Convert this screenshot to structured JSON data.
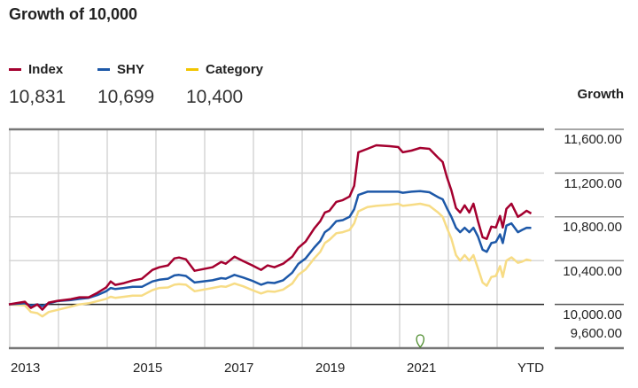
{
  "title": "Growth of 10,000",
  "legend": [
    {
      "name": "Index",
      "value": "10,831",
      "color": "#a4002f"
    },
    {
      "name": "SHY",
      "value": "10,699",
      "color": "#1d58a8"
    },
    {
      "name": "Category",
      "value": "10,400",
      "color": "#f7dc85"
    }
  ],
  "chart_data": {
    "type": "line",
    "title": "Growth of 10,000",
    "ylabel": "Growth",
    "ylim": [
      9600,
      11600
    ],
    "yticks": [
      "11,600.00",
      "11,200.00",
      "10,800.00",
      "10,400.00",
      "10,000.00",
      "9,600.00"
    ],
    "xticks": [
      "2013",
      "2015",
      "2017",
      "2019",
      "2021",
      "YTD"
    ],
    "xlim": [
      2013.0,
      2024.4
    ],
    "grid": true,
    "baseline": 10000,
    "marker": {
      "x": 2021.97,
      "icon": "pin-icon",
      "color": "#4a8a2a"
    },
    "x": [
      2013.0,
      2013.35,
      2013.48,
      2013.62,
      2013.73,
      2013.87,
      2014.06,
      2014.35,
      2014.54,
      2014.74,
      2014.93,
      2015.12,
      2015.22,
      2015.32,
      2015.51,
      2015.7,
      2015.9,
      2016.13,
      2016.28,
      2016.47,
      2016.61,
      2016.71,
      2016.86,
      2017.05,
      2017.44,
      2017.63,
      2017.73,
      2017.92,
      2018.11,
      2018.31,
      2018.5,
      2018.64,
      2018.79,
      2018.98,
      2019.18,
      2019.31,
      2019.47,
      2019.66,
      2019.79,
      2019.89,
      2019.99,
      2020.14,
      2020.28,
      2020.43,
      2020.53,
      2020.62,
      2020.82,
      2021.01,
      2021.3,
      2021.49,
      2021.59,
      2021.78,
      2021.97,
      2022.17,
      2022.36,
      2022.46,
      2022.55,
      2022.65,
      2022.75,
      2022.84,
      2022.94,
      2023.04,
      2023.13,
      2023.23,
      2023.33,
      2023.42,
      2023.52,
      2023.62,
      2023.71,
      2023.77,
      2023.85,
      2023.96,
      2024.1,
      2024.19,
      2024.29,
      2024.39
    ],
    "series": [
      {
        "name": "Index",
        "values": [
          10000,
          10024,
          9968,
          10000,
          9952,
          10016,
          10032,
          10048,
          10065,
          10065,
          10105,
          10154,
          10210,
          10178,
          10194,
          10218,
          10234,
          10315,
          10339,
          10356,
          10420,
          10428,
          10412,
          10307,
          10339,
          10388,
          10372,
          10436,
          10396,
          10356,
          10315,
          10356,
          10339,
          10372,
          10436,
          10517,
          10574,
          10695,
          10760,
          10840,
          10856,
          10937,
          10953,
          10986,
          11083,
          11390,
          11422,
          11454,
          11446,
          11438,
          11390,
          11406,
          11430,
          11422,
          11341,
          11301,
          11164,
          11042,
          10881,
          10840,
          10905,
          10840,
          10921,
          10760,
          10614,
          10598,
          10711,
          10703,
          10808,
          10703,
          10873,
          10921,
          10800,
          10824,
          10856,
          10831
        ]
      },
      {
        "name": "SHY",
        "values": [
          10000,
          10010,
          9990,
          10000,
          9985,
          10010,
          10030,
          10040,
          10050,
          10060,
          10085,
          10120,
          10150,
          10140,
          10150,
          10160,
          10160,
          10210,
          10225,
          10235,
          10265,
          10270,
          10260,
          10200,
          10220,
          10240,
          10235,
          10270,
          10245,
          10215,
          10180,
          10200,
          10195,
          10220,
          10290,
          10370,
          10420,
          10520,
          10580,
          10660,
          10690,
          10760,
          10770,
          10800,
          10870,
          11000,
          11030,
          11030,
          11030,
          11030,
          11020,
          11030,
          11035,
          11025,
          10980,
          10960,
          10880,
          10800,
          10700,
          10660,
          10700,
          10660,
          10700,
          10620,
          10500,
          10480,
          10560,
          10570,
          10640,
          10560,
          10720,
          10740,
          10660,
          10680,
          10700,
          10699
        ]
      },
      {
        "name": "Category",
        "values": [
          10000,
          9990,
          9930,
          9920,
          9890,
          9930,
          9950,
          9980,
          10000,
          10010,
          10030,
          10050,
          10070,
          10060,
          10070,
          10080,
          10080,
          10130,
          10150,
          10155,
          10180,
          10185,
          10180,
          10120,
          10150,
          10165,
          10160,
          10190,
          10165,
          10130,
          10100,
          10120,
          10115,
          10135,
          10190,
          10270,
          10320,
          10420,
          10480,
          10560,
          10590,
          10650,
          10660,
          10680,
          10740,
          10850,
          10890,
          10900,
          10910,
          10920,
          10900,
          10910,
          10920,
          10900,
          10840,
          10800,
          10700,
          10600,
          10450,
          10400,
          10450,
          10400,
          10450,
          10330,
          10200,
          10170,
          10250,
          10260,
          10350,
          10250,
          10400,
          10430,
          10380,
          10390,
          10410,
          10400
        ]
      }
    ]
  }
}
